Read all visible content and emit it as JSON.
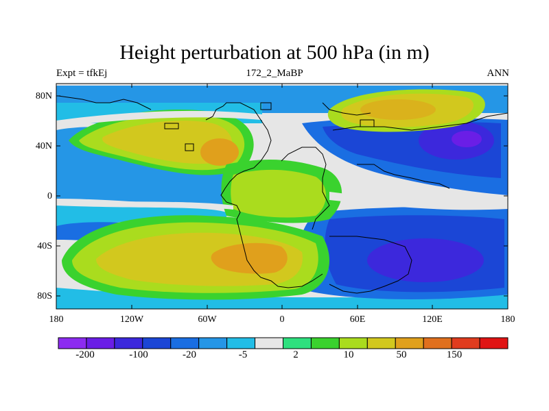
{
  "map": {
    "title": "Height perturbation at 500 hPa (in m)",
    "subtitle_left": "Expt = tfkEj",
    "subtitle_center": "172_2_MaBP",
    "subtitle_right": "ANN",
    "lat_labels": [
      "80N",
      "40N",
      "0",
      "40S",
      "80S"
    ],
    "lon_labels": [
      "180",
      "120W",
      "60W",
      "0",
      "60E",
      "120E",
      "180"
    ],
    "colorbar": {
      "colors": [
        "#8c2cf0",
        "#6a1ee6",
        "#3c28dc",
        "#1b46d6",
        "#1a6ee2",
        "#2596e6",
        "#22bde6",
        "#e6e6e6",
        "#2ee07e",
        "#3ad22e",
        "#aadc1e",
        "#d2c81e",
        "#e0a01c",
        "#e0701e",
        "#e03c1e",
        "#e01414"
      ],
      "labels": [
        "-200",
        "-100",
        "-20",
        "-5",
        "2",
        "10",
        "50",
        "150"
      ]
    }
  }
}
